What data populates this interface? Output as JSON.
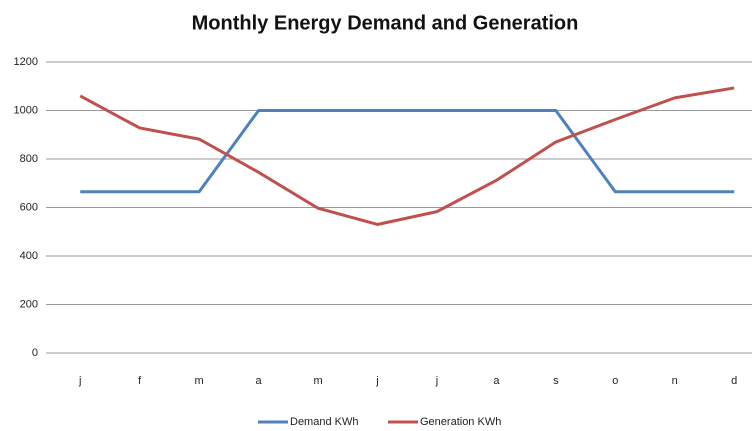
{
  "chart_data": {
    "type": "line",
    "title": "Monthly Energy Demand and Generation",
    "categories": [
      "j",
      "f",
      "m",
      "a",
      "m",
      "j",
      "j",
      "a",
      "s",
      "o",
      "n",
      "d"
    ],
    "series": [
      {
        "name": "Demand KWh",
        "color": "#4f81bd",
        "values": [
          665,
          665,
          665,
          1000,
          1000,
          1000,
          1000,
          1000,
          1000,
          665,
          665,
          665
        ]
      },
      {
        "name": "Generation KWh",
        "color": "#c0504d",
        "values": [
          1060,
          928,
          882,
          745,
          597,
          530,
          583,
          712,
          870,
          963,
          1052,
          1093
        ]
      }
    ],
    "ylim": [
      0,
      1200
    ],
    "yticks": [
      0,
      200,
      400,
      600,
      800,
      1000,
      1200
    ],
    "grid": true,
    "legend": "bottom"
  }
}
